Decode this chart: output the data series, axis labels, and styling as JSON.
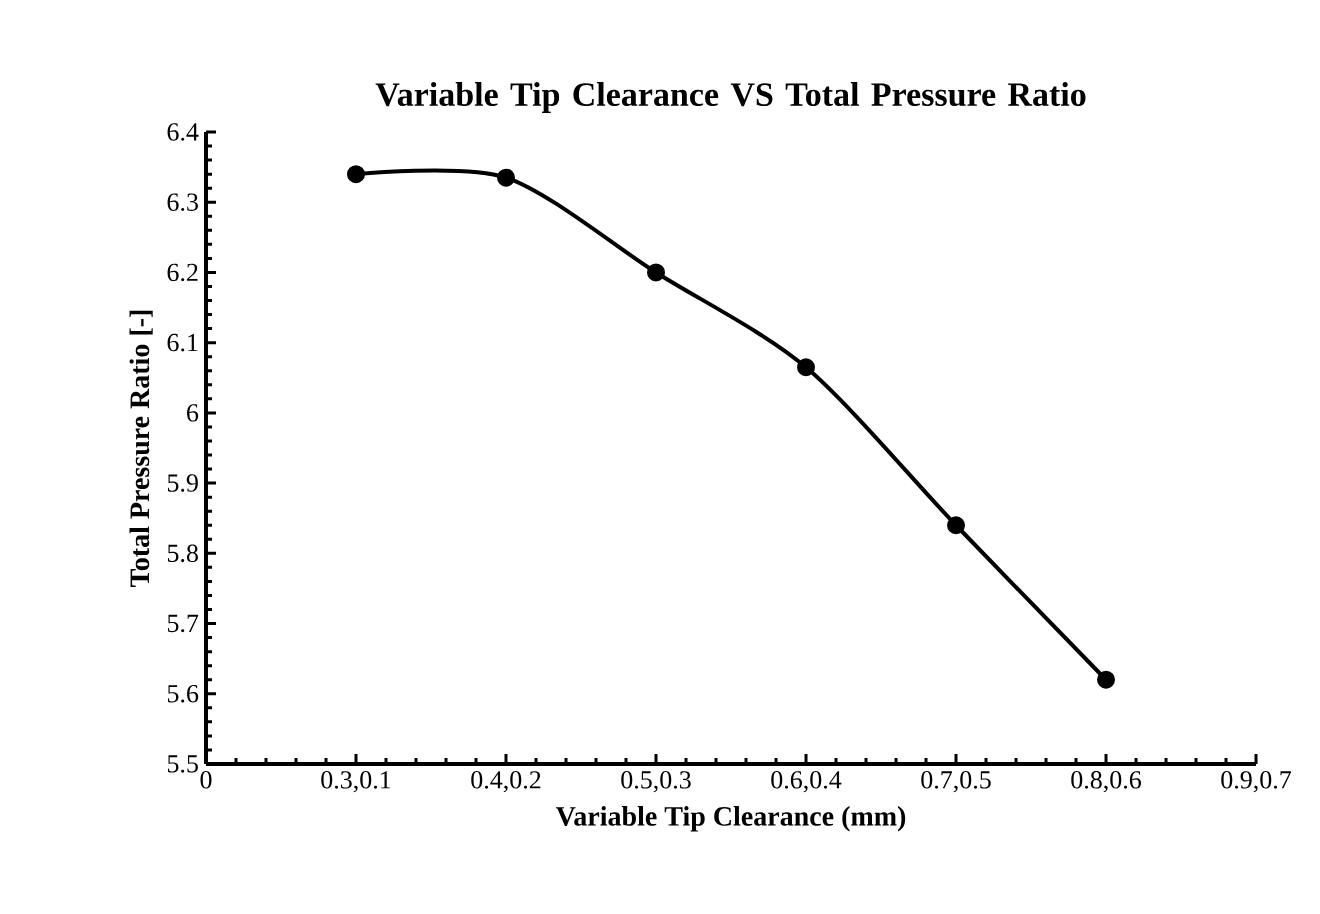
{
  "chart_data": {
    "type": "line",
    "title": "Variable Tip Clearance VS  Total Pressure Ratio",
    "xlabel": "Variable Tip Clearance (mm)",
    "ylabel": "Total Pressure Ratio [-]",
    "categories": [
      "0",
      "0.3,0.1",
      "0.4,0.2",
      "0.5,0.3",
      "0.6,0.4",
      "0.7,0.5",
      "0.8,0.6",
      "0.9,0.7"
    ],
    "series": [
      {
        "color": "#000000",
        "values": [
          null,
          6.34,
          6.335,
          6.2,
          6.065,
          5.84,
          5.62,
          null
        ]
      }
    ],
    "ylim": [
      5.5,
      6.4
    ],
    "yticks": [
      5.5,
      5.6,
      5.7,
      5.8,
      5.9,
      6,
      6.1,
      6.2,
      6.3,
      6.4
    ],
    "marker": "circle",
    "line_style": "solid"
  }
}
